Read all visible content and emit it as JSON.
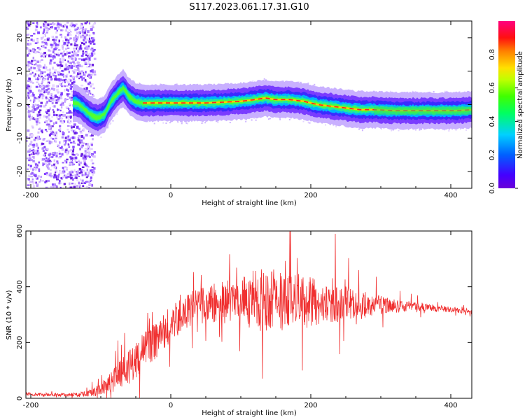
{
  "figure": {
    "title": "S117.2023.061.17.31.G10"
  },
  "chart_data": [
    {
      "type": "heatmap",
      "xlabel": "Height of straight line (km)",
      "ylabel": "Frequency (Hz)",
      "xlim": [
        -207,
        430
      ],
      "ylim": [
        -25,
        25
      ],
      "xticks": [
        -200,
        0,
        200,
        400
      ],
      "yticks": [
        -20,
        -10,
        0,
        10,
        20
      ],
      "colorbar": {
        "label": "Normalized spectral amplitude",
        "range": [
          0.0,
          1.0
        ],
        "ticks": [
          0.0,
          0.2,
          0.4,
          0.6,
          0.8
        ],
        "colormap": "rainbow (purple-blue-cyan-green-yellow-red-magenta)"
      },
      "ridge": {
        "description": "Dominant spectral ridge frequency vs height (estimated)",
        "x": [
          -135,
          -125,
          -115,
          -105,
          -95,
          -85,
          -75,
          -68,
          -60,
          -50,
          -40,
          -20,
          0,
          20,
          50,
          80,
          100,
          120,
          135,
          150,
          170,
          190,
          210,
          230,
          250,
          270,
          290,
          320,
          350,
          380,
          410,
          430
        ],
        "y": [
          0.5,
          -1,
          -3,
          -4,
          -3,
          1,
          3.5,
          5,
          2.5,
          1,
          0.5,
          0.5,
          0.5,
          0.5,
          0.5,
          0.8,
          1,
          1.5,
          2,
          1.5,
          1.5,
          1,
          0,
          -0.5,
          -1,
          -1.5,
          -1.5,
          -1.8,
          -1.8,
          -1.8,
          -1.8,
          -1.5
        ]
      },
      "noise_region": {
        "x": [
          -207,
          -125
        ],
        "description": "broadband low-amplitude noise across all frequencies"
      }
    },
    {
      "type": "line",
      "xlabel": "Height of straight line (km)",
      "ylabel": "SNR (10 * v/v)",
      "xlim": [
        -207,
        430
      ],
      "ylim": [
        0,
        600
      ],
      "xticks": [
        -200,
        0,
        200,
        400
      ],
      "yticks": [
        0,
        200,
        400,
        600
      ],
      "color": "#f03030",
      "envelope": {
        "description": "Approximate mean SNR and fluctuation amplitude vs height (estimated)",
        "x": [
          -207,
          -150,
          -120,
          -100,
          -80,
          -60,
          -40,
          -20,
          0,
          20,
          40,
          60,
          80,
          100,
          120,
          140,
          160,
          180,
          200,
          220,
          240,
          260,
          280,
          300,
          320,
          340,
          360,
          380,
          400,
          430
        ],
        "mean": [
          15,
          12,
          15,
          30,
          70,
          110,
          160,
          215,
          265,
          310,
          330,
          340,
          345,
          350,
          350,
          352,
          350,
          348,
          345,
          340,
          338,
          335,
          335,
          335,
          330,
          330,
          328,
          322,
          318,
          310
        ],
        "amplitude": [
          6,
          6,
          10,
          25,
          45,
          60,
          70,
          70,
          65,
          60,
          65,
          70,
          80,
          95,
          110,
          115,
          110,
          100,
          90,
          80,
          70,
          60,
          45,
          35,
          25,
          18,
          15,
          12,
          10,
          10
        ]
      },
      "peaks": [
        {
          "x": 170,
          "y": 598
        },
        {
          "x": 235,
          "y": 590
        }
      ]
    }
  ]
}
